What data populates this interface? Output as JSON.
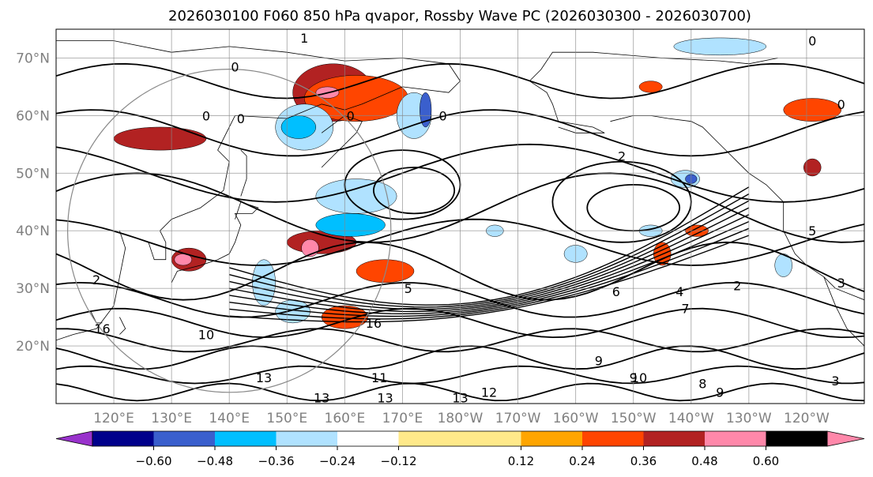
{
  "chart_data": {
    "type": "heatmap",
    "title": "2026030100 F060 850 hPa qvapor, Rossby Wave PC (2026030300 - 2026030700)",
    "map": {
      "projection": "PlateCarree",
      "lon_range": [
        110,
        250
      ],
      "lat_range": [
        10,
        75
      ],
      "lat_ticks": [
        20,
        30,
        40,
        50,
        60,
        70
      ],
      "lat_tick_labels": [
        "20°N",
        "30°N",
        "40°N",
        "50°N",
        "60°N",
        "70°N"
      ],
      "lon_ticks": [
        120,
        130,
        140,
        150,
        160,
        170,
        180,
        190,
        200,
        210,
        220,
        230,
        240
      ],
      "lon_tick_labels": [
        "120°E",
        "130°E",
        "140°E",
        "150°E",
        "160°E",
        "170°E",
        "180°W",
        "170°W",
        "160°W",
        "150°W",
        "140°W",
        "130°W",
        "120°W"
      ],
      "grid": true,
      "coastlines": true
    },
    "colorbar": {
      "orientation": "horizontal",
      "extend": "both",
      "levels": [
        -0.72,
        -0.6,
        -0.48,
        -0.36,
        -0.24,
        -0.12,
        0.12,
        0.24,
        0.36,
        0.48,
        0.6,
        0.72
      ],
      "tick_values": [
        -0.6,
        -0.48,
        -0.36,
        -0.24,
        -0.12,
        0.12,
        0.24,
        0.36,
        0.48,
        0.6
      ],
      "tick_labels": [
        "−0.60",
        "−0.48",
        "−0.36",
        "−0.24",
        "−0.12",
        "0.12",
        "0.24",
        "0.36",
        "0.48",
        "0.60"
      ],
      "colors": [
        "#9932cc",
        "#00008b",
        "#3a5fcd",
        "#00bfff",
        "#b0e2ff",
        "#ffffff",
        "#ffe98a",
        "#ffa500",
        "#ff4500",
        "#b22222",
        "#ff88aa"
      ]
    },
    "fill_regions": [
      {
        "value": 0.42,
        "lon": 158,
        "lat": 64,
        "rlon": 7,
        "rlat": 5
      },
      {
        "value": 0.3,
        "lon": 162,
        "lat": 63,
        "rlon": 9,
        "rlat": 4
      },
      {
        "value": 0.6,
        "lon": 157,
        "lat": 64,
        "rlon": 2,
        "rlat": 1
      },
      {
        "value": 0.42,
        "lon": 128,
        "lat": 56,
        "rlon": 8,
        "rlat": 2
      },
      {
        "value": 0.42,
        "lon": 133,
        "lat": 35,
        "rlon": 3,
        "rlat": 2
      },
      {
        "value": 0.6,
        "lon": 132,
        "lat": 35,
        "rlon": 1.5,
        "rlat": 1
      },
      {
        "value": 0.42,
        "lon": 156,
        "lat": 38,
        "rlon": 6,
        "rlat": 2
      },
      {
        "value": 0.54,
        "lon": 154,
        "lat": 37,
        "rlon": 1.5,
        "rlat": 1.5
      },
      {
        "value": 0.3,
        "lon": 167,
        "lat": 33,
        "rlon": 5,
        "rlat": 2
      },
      {
        "value": 0.3,
        "lon": 160,
        "lat": 25,
        "rlon": 4,
        "rlat": 2
      },
      {
        "value": 0.3,
        "lon": 213,
        "lat": 65,
        "rlon": 2,
        "rlat": 1
      },
      {
        "value": 0.3,
        "lon": 241,
        "lat": 61,
        "rlon": 5,
        "rlat": 2
      },
      {
        "value": 0.42,
        "lon": 241,
        "lat": 51,
        "rlon": 1.5,
        "rlat": 1.5
      },
      {
        "value": 0.3,
        "lon": 215,
        "lat": 36,
        "rlon": 1.5,
        "rlat": 2
      },
      {
        "value": 0.3,
        "lon": 221,
        "lat": 40,
        "rlon": 2,
        "rlat": 1
      },
      {
        "value": -0.3,
        "lon": 153,
        "lat": 58,
        "rlon": 5,
        "rlat": 4
      },
      {
        "value": -0.42,
        "lon": 152,
        "lat": 58,
        "rlon": 3,
        "rlat": 2
      },
      {
        "value": -0.3,
        "lon": 172,
        "lat": 60,
        "rlon": 3,
        "rlat": 4
      },
      {
        "value": -0.54,
        "lon": 174,
        "lat": 61,
        "rlon": 1,
        "rlat": 3
      },
      {
        "value": -0.3,
        "lon": 162,
        "lat": 46,
        "rlon": 7,
        "rlat": 3
      },
      {
        "value": -0.42,
        "lon": 161,
        "lat": 41,
        "rlon": 6,
        "rlat": 2
      },
      {
        "value": -0.3,
        "lon": 146,
        "lat": 31,
        "rlon": 2,
        "rlat": 4
      },
      {
        "value": -0.3,
        "lon": 151,
        "lat": 26,
        "rlon": 3,
        "rlat": 2
      },
      {
        "value": -0.3,
        "lon": 225,
        "lat": 72,
        "rlon": 8,
        "rlat": 1.5
      },
      {
        "value": -0.3,
        "lon": 219,
        "lat": 49,
        "rlon": 2.5,
        "rlat": 1.5
      },
      {
        "value": -0.54,
        "lon": 220,
        "lat": 49,
        "rlon": 1,
        "rlat": 0.8
      },
      {
        "value": -0.3,
        "lon": 213,
        "lat": 40,
        "rlon": 2,
        "rlat": 1
      },
      {
        "value": -0.3,
        "lon": 200,
        "lat": 36,
        "rlon": 2,
        "rlat": 1.5
      },
      {
        "value": -0.3,
        "lon": 186,
        "lat": 40,
        "rlon": 1.5,
        "rlat": 1
      },
      {
        "value": -0.3,
        "lon": 236,
        "lat": 34,
        "rlon": 1.5,
        "rlat": 2
      }
    ],
    "contour_labels": [
      {
        "text": "1",
        "lon": 153,
        "lat": 73.5
      },
      {
        "text": "0",
        "lon": 141,
        "lat": 68.5
      },
      {
        "text": "0",
        "lon": 136,
        "lat": 60
      },
      {
        "text": "0",
        "lon": 142,
        "lat": 59.5
      },
      {
        "text": "0",
        "lon": 161,
        "lat": 60
      },
      {
        "text": "0",
        "lon": 177,
        "lat": 60
      },
      {
        "text": "0",
        "lon": 241,
        "lat": 73
      },
      {
        "text": "0",
        "lon": 246,
        "lat": 62
      },
      {
        "text": "2",
        "lon": 208,
        "lat": 53
      },
      {
        "text": "2",
        "lon": 117,
        "lat": 31.5
      },
      {
        "text": "2",
        "lon": 228,
        "lat": 30.5
      },
      {
        "text": "5",
        "lon": 171,
        "lat": 30
      },
      {
        "text": "5",
        "lon": 241,
        "lat": 40
      },
      {
        "text": "4",
        "lon": 218,
        "lat": 29.5
      },
      {
        "text": "6",
        "lon": 207,
        "lat": 29.5
      },
      {
        "text": "7",
        "lon": 219,
        "lat": 26.5
      },
      {
        "text": "8",
        "lon": 222,
        "lat": 13.5
      },
      {
        "text": "9",
        "lon": 204,
        "lat": 17.5
      },
      {
        "text": "9",
        "lon": 210,
        "lat": 14.5
      },
      {
        "text": "9",
        "lon": 225,
        "lat": 12
      },
      {
        "text": "10",
        "lon": 136,
        "lat": 22
      },
      {
        "text": "10",
        "lon": 211,
        "lat": 14.5
      },
      {
        "text": "11",
        "lon": 166,
        "lat": 14.5
      },
      {
        "text": "13",
        "lon": 146,
        "lat": 14.5
      },
      {
        "text": "13",
        "lon": 156,
        "lat": 11
      },
      {
        "text": "13",
        "lon": 167,
        "lat": 11
      },
      {
        "text": "13",
        "lon": 180,
        "lat": 11
      },
      {
        "text": "12",
        "lon": 185,
        "lat": 12
      },
      {
        "text": "3",
        "lon": 245,
        "lat": 14
      },
      {
        "text": "3",
        "lon": 246,
        "lat": 31
      },
      {
        "text": "16",
        "lon": 118,
        "lat": 23
      },
      {
        "text": "16",
        "lon": 165,
        "lat": 24
      }
    ]
  }
}
